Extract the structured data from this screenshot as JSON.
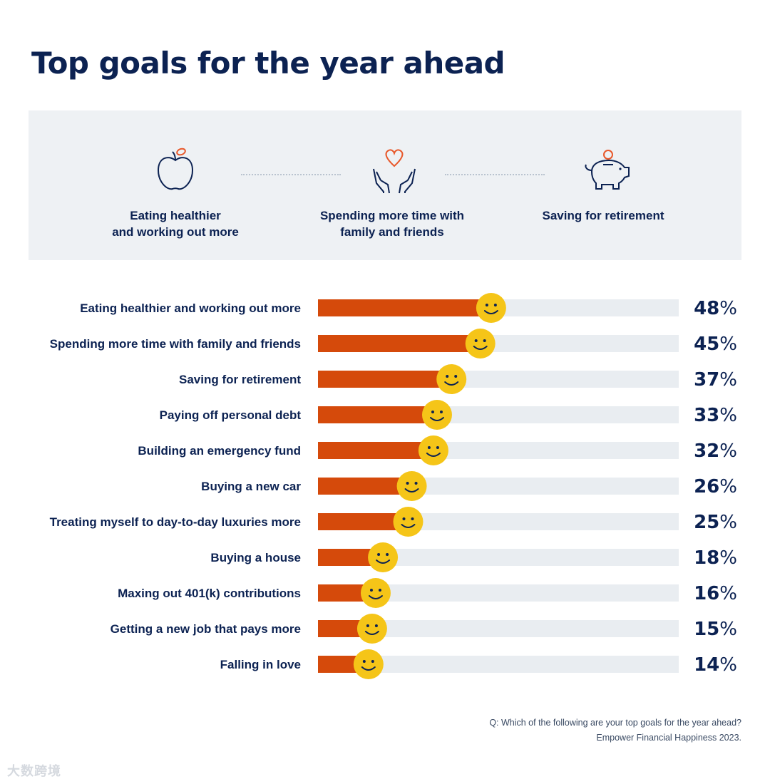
{
  "title": "Top goals for the year ahead",
  "highlights": [
    {
      "label": "Eating healthier\nand working out more",
      "icon": "apple-icon"
    },
    {
      "label": "Spending more time with\nfamily and friends",
      "icon": "heart-hands-icon"
    },
    {
      "label": "Saving for retirement",
      "icon": "piggy-bank-icon"
    }
  ],
  "colors": {
    "bar": "#d54a0b",
    "track": "#e9edf1",
    "smiley": "#f5c518",
    "text": "#0c2252",
    "panel": "#eef1f4",
    "icon_accent": "#e8582a"
  },
  "chart_data": {
    "type": "bar",
    "orientation": "horizontal",
    "unit": "%",
    "xlim": [
      0,
      100
    ],
    "categories": [
      "Eating healthier and working out more",
      "Spending more time with family and friends",
      "Saving for retirement",
      "Paying off personal debt",
      "Building an emergency fund",
      "Buying a new car",
      "Treating myself to day-to-day luxuries more",
      "Buying a house",
      "Maxing out 401(k) contributions",
      "Getting a new job that pays more",
      "Falling in love"
    ],
    "values": [
      48,
      45,
      37,
      33,
      32,
      26,
      25,
      18,
      16,
      15,
      14
    ],
    "marker": "smiley-face"
  },
  "footer": {
    "question": "Q: Which of the following are your top goals for the year ahead?",
    "source": "Empower Financial Happiness 2023."
  },
  "watermark": "大数跨境"
}
